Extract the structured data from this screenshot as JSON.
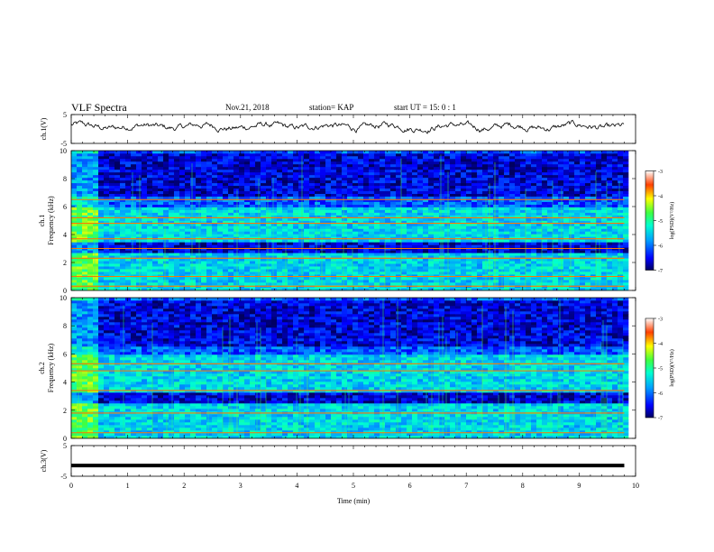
{
  "header": {
    "title": "VLF Spectra",
    "date": "Nov.21, 2018",
    "station": "station= KAP",
    "start": "start  UT =   15: 0  : 1"
  },
  "chart_data": [
    {
      "type": "line",
      "panel": "ch1-waveform",
      "ylabel": "ch.1(V)",
      "xlim": [
        0,
        10
      ],
      "ylim": [
        -5,
        5
      ],
      "yticks": [
        "5",
        "-5"
      ],
      "data_extent_min": 9.8,
      "description_of_values": "noisy waveform oscillating between about -1 and +2.5 V"
    },
    {
      "type": "heatmap",
      "panel": "ch1-spectrogram",
      "ylabel_top": "ch.1",
      "ylabel": "Frequency  (kHz)",
      "xlim": [
        0,
        10
      ],
      "ylim": [
        0,
        10
      ],
      "yticks": [
        "0",
        "2",
        "4",
        "6",
        "8",
        "10"
      ],
      "data_extent_min": 9.8,
      "colorbar": {
        "label": "log(PSD)(V²/Hz)",
        "range": [
          -7,
          -3
        ],
        "ticks": [
          "-3",
          "-4",
          "-5",
          "-6",
          "-7"
        ]
      },
      "strong_lines_khz": [
        0.3,
        1.0,
        2.3,
        3.0,
        3.7,
        4.8,
        5.2,
        6.5
      ],
      "quiet_bands_khz": [
        [
          2.6,
          3.4
        ],
        [
          6.8,
          9.8
        ]
      ]
    },
    {
      "type": "heatmap",
      "panel": "ch2-spectrogram",
      "ylabel_top": "ch.2",
      "ylabel": "Frequency  (kHz)",
      "xlim": [
        0,
        10
      ],
      "ylim": [
        0,
        10
      ],
      "yticks": [
        "0",
        "2",
        "4",
        "6",
        "8",
        "10"
      ],
      "data_extent_min": 9.8,
      "colorbar": {
        "label": "log(PSD)(V²/Hz)",
        "range": [
          -7,
          -3
        ],
        "ticks": [
          "-3",
          "-4",
          "-5",
          "-6",
          "-7"
        ]
      },
      "strong_lines_khz": [
        0.4,
        1.8,
        3.4,
        4.8,
        5.3
      ],
      "quiet_bands_khz": [
        [
          2.5,
          3.2
        ],
        [
          6.5,
          9.8
        ]
      ]
    },
    {
      "type": "line",
      "panel": "ch3-waveform",
      "ylabel": "ch.3(V)",
      "xlabel": "Time  (min)",
      "xlim": [
        0,
        10
      ],
      "ylim": [
        -5,
        5
      ],
      "yticks": [
        "5",
        "-5"
      ],
      "xticks": [
        "0",
        "1",
        "2",
        "3",
        "4",
        "5",
        "6",
        "7",
        "8",
        "9",
        "10"
      ],
      "constant_value": -1.5,
      "data_extent_min": 9.8
    }
  ]
}
